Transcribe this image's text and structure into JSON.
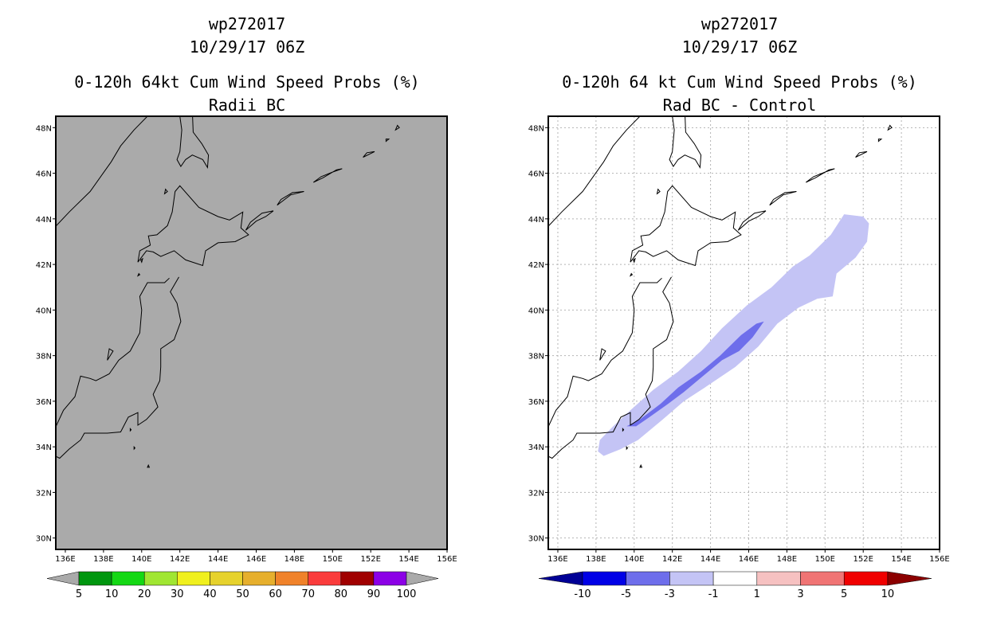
{
  "panels": [
    {
      "title_lines": [
        "wp272017",
        "10/29/17 06Z",
        "0-120h 64kt Cum Wind Speed Probs (%)",
        "Radii BC"
      ]
    },
    {
      "title_lines": [
        "wp272017",
        "10/29/17 06Z",
        "0-120h 64 kt Cum Wind Speed Probs (%)",
        "Rad BC - Control"
      ]
    }
  ],
  "map": {
    "lon_range": [
      135.5,
      156
    ],
    "lat_range": [
      29.5,
      48.5
    ],
    "lon_ticks": [
      136,
      138,
      140,
      142,
      144,
      146,
      148,
      150,
      152,
      154,
      156
    ],
    "lat_ticks": [
      30,
      32,
      34,
      36,
      38,
      40,
      42,
      44,
      46,
      48
    ],
    "lon_labels": [
      "136E",
      "138E",
      "140E",
      "142E",
      "144E",
      "146E",
      "148E",
      "150E",
      "152E",
      "154E",
      "156E"
    ],
    "lat_labels": [
      "30N",
      "32N",
      "34N",
      "36N",
      "38N",
      "40N",
      "42N",
      "44N",
      "46N",
      "48N"
    ]
  },
  "colorbars": [
    {
      "name": "probability",
      "labels": [
        "5",
        "10",
        "20",
        "30",
        "40",
        "50",
        "60",
        "70",
        "80",
        "90",
        "100"
      ],
      "colors": [
        "#00960f",
        "#14d814",
        "#a0e632",
        "#f0f01e",
        "#e6d22d",
        "#e6af2d",
        "#f0822a",
        "#fa3c3c",
        "#a00000",
        "#8c00e6"
      ],
      "end_color": "#aaaaaa"
    },
    {
      "name": "difference",
      "labels": [
        "-10",
        "-5",
        "-3",
        "-1",
        "1",
        "3",
        "5",
        "10"
      ],
      "colors": [
        "#0000e6",
        "#6e6eeb",
        "#c4c4f5",
        "#ffffff",
        "#f6c1c1",
        "#f07474",
        "#f00000"
      ],
      "low_end_color": "#000096",
      "high_end_color": "#8c0000"
    }
  ],
  "swath": {
    "outer_color": "#c4c4f5",
    "inner_color": "#6e6eeb"
  }
}
